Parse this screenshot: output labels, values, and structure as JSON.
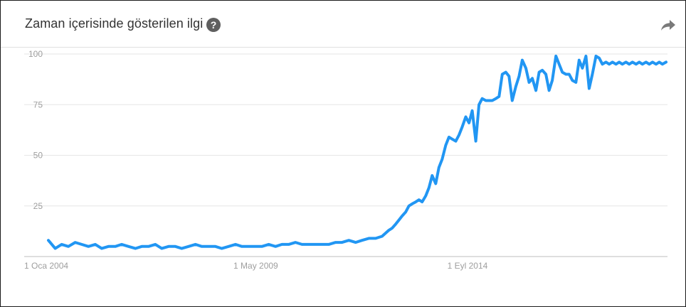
{
  "header": {
    "title": "Zaman içerisinde gösterilen ilgi",
    "help_icon": "help-circle-icon",
    "share_icon": "share-arrow-icon"
  },
  "colors": {
    "line": "#2196f3",
    "grid": "#e6e6e6",
    "tick_text": "#9e9e9e",
    "title_text": "#333333"
  },
  "chart_data": {
    "type": "line",
    "title": "Zaman içerisinde gösterilen ilgi",
    "xlabel": "",
    "ylabel": "",
    "ylim": [
      0,
      100
    ],
    "xlim": [
      2004.0,
      2019.42
    ],
    "yticks": [
      25,
      50,
      75,
      100
    ],
    "yticks_labels": [
      "25",
      "50",
      "75",
      "100"
    ],
    "xticks": [
      2004.0,
      2009.33,
      2014.67
    ],
    "xticks_labels": [
      "1 Oca 2004",
      "1 May 2009",
      "1 Eyl 2014"
    ],
    "grid": true,
    "legend": "none",
    "series": [
      {
        "x": [
          2004.0,
          2004.17,
          2004.33,
          2004.5,
          2004.67,
          2004.83,
          2005.0,
          2005.17,
          2005.33,
          2005.5,
          2005.67,
          2005.83,
          2006.0,
          2006.17,
          2006.33,
          2006.5,
          2006.67,
          2006.83,
          2007.0,
          2007.17,
          2007.33,
          2007.5,
          2007.67,
          2007.83,
          2008.0,
          2008.17,
          2008.33,
          2008.5,
          2008.67,
          2008.83,
          2009.0,
          2009.17,
          2009.33,
          2009.5,
          2009.67,
          2009.83,
          2010.0,
          2010.17,
          2010.33,
          2010.5,
          2010.67,
          2010.83,
          2011.0,
          2011.17,
          2011.33,
          2011.5,
          2011.67,
          2011.83,
          2012.0,
          2012.17,
          2012.33,
          2012.5,
          2012.58,
          2012.67,
          2012.75,
          2012.83,
          2012.92,
          2013.0,
          2013.08,
          2013.17,
          2013.25,
          2013.33,
          2013.42,
          2013.5,
          2013.58,
          2013.67,
          2013.75,
          2013.83,
          2013.92,
          2014.0,
          2014.08,
          2014.17,
          2014.25,
          2014.33,
          2014.42,
          2014.5,
          2014.58,
          2014.67,
          2014.75,
          2014.83,
          2014.92,
          2015.0,
          2015.08,
          2015.17,
          2015.25,
          2015.33,
          2015.42,
          2015.5,
          2015.58,
          2015.67,
          2015.75,
          2015.83,
          2015.92,
          2016.0,
          2016.08,
          2016.17,
          2016.25,
          2016.33,
          2016.42,
          2016.5,
          2016.58,
          2016.67,
          2016.75,
          2016.83,
          2016.92,
          2017.0,
          2017.08,
          2017.17,
          2017.25,
          2017.33,
          2017.42,
          2017.5,
          2017.58,
          2017.67,
          2017.75,
          2017.83,
          2017.92,
          2018.0,
          2018.08,
          2018.17,
          2018.25,
          2018.33,
          2018.42,
          2018.5,
          2018.58,
          2018.67,
          2018.75,
          2018.83,
          2018.92,
          2019.0,
          2019.08,
          2019.17,
          2019.25,
          2019.33,
          2019.42
        ],
        "values": [
          8,
          4,
          6,
          5,
          7,
          6,
          5,
          6,
          4,
          5,
          5,
          6,
          5,
          4,
          5,
          5,
          6,
          4,
          5,
          5,
          4,
          5,
          6,
          5,
          5,
          5,
          4,
          5,
          6,
          5,
          5,
          5,
          5,
          6,
          5,
          6,
          6,
          7,
          6,
          6,
          6,
          6,
          6,
          7,
          7,
          8,
          7,
          8,
          9,
          9,
          10,
          13,
          14,
          16,
          18,
          20,
          22,
          25,
          26,
          27,
          28,
          27,
          30,
          34,
          40,
          36,
          44,
          48,
          55,
          59,
          58,
          57,
          60,
          64,
          69,
          66,
          72,
          57,
          75,
          78,
          77,
          77,
          77,
          78,
          79,
          90,
          91,
          89,
          77,
          84,
          89,
          97,
          93,
          86,
          88,
          82,
          91,
          92,
          90,
          82,
          87,
          99,
          95,
          91,
          90,
          90,
          87,
          86,
          97,
          93,
          99,
          83,
          90,
          99,
          98,
          95,
          96,
          95,
          96,
          95,
          96,
          95,
          96,
          95,
          96,
          95,
          96,
          95,
          96,
          95,
          96,
          95,
          96,
          95,
          96
        ]
      }
    ]
  }
}
